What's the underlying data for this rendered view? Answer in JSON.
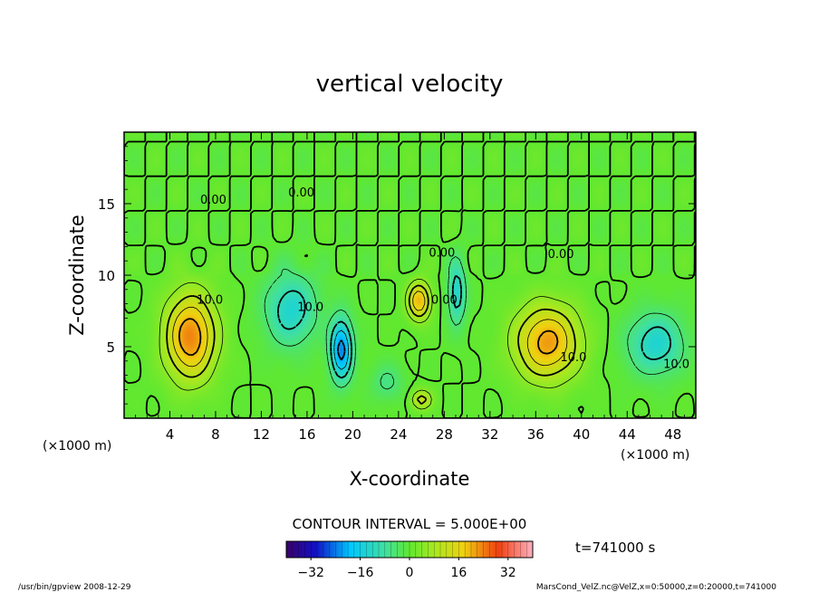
{
  "chart_data": {
    "type": "heatmap",
    "title": "vertical velocity",
    "xlabel": "X-coordinate",
    "ylabel": "Z-coordinate",
    "x_unit_left": "(×1000 m)",
    "x_unit_right": "(×1000 m)",
    "xlim": [
      0,
      50
    ],
    "ylim": [
      0,
      20
    ],
    "xticks": [
      "4",
      "8",
      "12",
      "16",
      "20",
      "24",
      "28",
      "32",
      "36",
      "40",
      "44",
      "48"
    ],
    "yticks": [
      "5",
      "10",
      "15"
    ],
    "contour_interval": "CONTOUR INTERVAL = 5.000E+00",
    "time": "t=741000 s",
    "colorbar": {
      "ticks": [
        "−32",
        "−16",
        "0",
        "16",
        "32"
      ],
      "range": [
        -40,
        40
      ]
    },
    "contour_labels": [
      {
        "text": "0.00",
        "x": 7.8,
        "z": 15.0
      },
      {
        "text": "10.0",
        "x": 7.5,
        "z": 8.0
      },
      {
        "text": "0.00",
        "x": 15.5,
        "z": 15.5
      },
      {
        "text": "10.0",
        "x": 16.3,
        "z": 7.5
      },
      {
        "text": "0.00",
        "x": 28.0,
        "z": 8.0
      },
      {
        "text": "0.00",
        "x": 27.8,
        "z": 11.3
      },
      {
        "text": "0.00",
        "x": 38.2,
        "z": 11.2
      },
      {
        "text": "10.0",
        "x": 39.3,
        "z": 4.0
      },
      {
        "text": "10.0",
        "x": 48.3,
        "z": 3.5
      }
    ],
    "cells": [
      {
        "x": 5.8,
        "z": 5.7,
        "sx": 2.2,
        "sz": 3.0,
        "amp": 24
      },
      {
        "x": 25.8,
        "z": 8.2,
        "sx": 1.0,
        "sz": 1.3,
        "amp": 20
      },
      {
        "x": 26.0,
        "z": 1.3,
        "sx": 0.9,
        "sz": 0.7,
        "amp": 12
      },
      {
        "x": 37.0,
        "z": 5.3,
        "sx": 2.8,
        "sz": 2.6,
        "amp": 22
      },
      {
        "x": 14.6,
        "z": 7.6,
        "sx": 2.3,
        "sz": 2.6,
        "amp": -13
      },
      {
        "x": 19.0,
        "z": 4.8,
        "sx": 1.0,
        "sz": 2.2,
        "amp": -22
      },
      {
        "x": 29.1,
        "z": 8.8,
        "sx": 0.8,
        "sz": 2.3,
        "amp": -13
      },
      {
        "x": 46.5,
        "z": 5.2,
        "sx": 2.5,
        "sz": 2.2,
        "amp": -13
      },
      {
        "x": 23.0,
        "z": 2.5,
        "sx": 1.4,
        "sz": 1.3,
        "amp": -6
      }
    ]
  },
  "footer": {
    "left": "/usr/bin/gpview  2008-12-29",
    "right": "MarsCond_VelZ.nc@VelZ,x=0:50000,z=0:20000,t=741000"
  }
}
